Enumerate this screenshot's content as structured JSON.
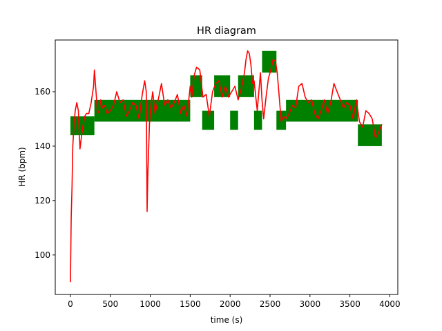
{
  "chart_data": {
    "type": "line",
    "title": "HR diagram",
    "xlabel": "time (s)",
    "ylabel": "HR (bpm)",
    "xlim": [
      -190,
      4100
    ],
    "ylim": [
      85.5,
      179
    ],
    "xticks": [
      0,
      500,
      1000,
      1500,
      2000,
      2500,
      3000,
      3500,
      4000
    ],
    "yticks": [
      100,
      120,
      140,
      160
    ],
    "grid": false,
    "legend": "none",
    "colors": {
      "zones": "#008000",
      "hr": "#ff0000"
    },
    "zones": [
      {
        "x0": 0,
        "x1": 300,
        "low": 144,
        "high": 151
      },
      {
        "x0": 300,
        "x1": 1500,
        "low": 149,
        "high": 157
      },
      {
        "x0": 1500,
        "x1": 1650,
        "low": 158,
        "high": 166
      },
      {
        "x0": 1650,
        "x1": 1800,
        "low": 146,
        "high": 153
      },
      {
        "x0": 1800,
        "x1": 2000,
        "low": 158,
        "high": 166
      },
      {
        "x0": 2000,
        "x1": 2100,
        "low": 146,
        "high": 153
      },
      {
        "x0": 2100,
        "x1": 2300,
        "low": 158,
        "high": 166
      },
      {
        "x0": 2300,
        "x1": 2400,
        "low": 146,
        "high": 153
      },
      {
        "x0": 2400,
        "x1": 2580,
        "low": 167,
        "high": 175
      },
      {
        "x0": 2580,
        "x1": 2700,
        "low": 146,
        "high": 153
      },
      {
        "x0": 2700,
        "x1": 3600,
        "low": 149,
        "high": 157
      },
      {
        "x0": 3600,
        "x1": 3900,
        "low": 140,
        "high": 148
      }
    ],
    "series": [
      {
        "x": [
          0,
          10,
          20,
          30,
          45,
          60,
          80,
          100,
          120,
          140,
          160,
          180,
          200,
          230,
          260,
          290,
          300,
          320,
          340,
          360,
          380,
          400,
          430,
          460,
          500,
          540,
          580,
          620,
          660,
          700,
          740,
          780,
          820,
          860,
          900,
          930,
          950,
          960,
          970,
          990,
          1010,
          1030,
          1060,
          1100,
          1140,
          1180,
          1220,
          1260,
          1300,
          1340,
          1380,
          1420,
          1460,
          1500,
          1520,
          1550,
          1580,
          1620,
          1660,
          1700,
          1740,
          1780,
          1820,
          1860,
          1900,
          1940,
          1980,
          2020,
          2060,
          2100,
          2140,
          2180,
          2200,
          2220,
          2240,
          2260,
          2280,
          2300,
          2340,
          2380,
          2400,
          2420,
          2450,
          2480,
          2510,
          2540,
          2570,
          2590,
          2610,
          2640,
          2670,
          2700,
          2740,
          2780,
          2820,
          2860,
          2900,
          2940,
          2980,
          3020,
          3060,
          3100,
          3140,
          3180,
          3220,
          3260,
          3300,
          3340,
          3380,
          3420,
          3460,
          3500,
          3540,
          3580,
          3600,
          3620,
          3660,
          3700,
          3740,
          3780,
          3820,
          3860,
          3900
        ],
        "y": [
          90,
          114,
          125,
          140,
          148,
          153,
          156,
          153,
          139,
          144,
          148,
          151,
          152,
          152,
          156,
          162,
          168,
          160,
          152,
          153,
          157,
          154,
          155,
          152,
          153,
          155,
          160,
          156,
          157,
          151,
          153,
          156,
          155,
          150,
          159,
          164,
          160,
          116,
          130,
          148,
          155,
          160,
          152,
          157,
          163,
          155,
          157,
          154,
          156,
          159,
          152,
          155,
          151,
          162,
          158,
          166,
          169,
          168,
          158,
          159,
          151,
          160,
          163,
          164,
          158,
          162,
          158,
          160,
          162,
          157,
          161,
          167,
          172,
          175,
          174,
          170,
          163,
          164,
          153,
          167,
          157,
          150,
          158,
          165,
          168,
          172,
          171,
          167,
          160,
          149,
          151,
          150,
          152,
          155,
          154,
          162,
          163,
          158,
          156,
          157,
          152,
          150,
          153,
          157,
          152,
          156,
          163,
          160,
          157,
          154,
          156,
          155,
          150,
          157,
          153,
          149,
          147,
          153,
          152,
          150,
          143,
          145,
          148
        ]
      }
    ]
  }
}
